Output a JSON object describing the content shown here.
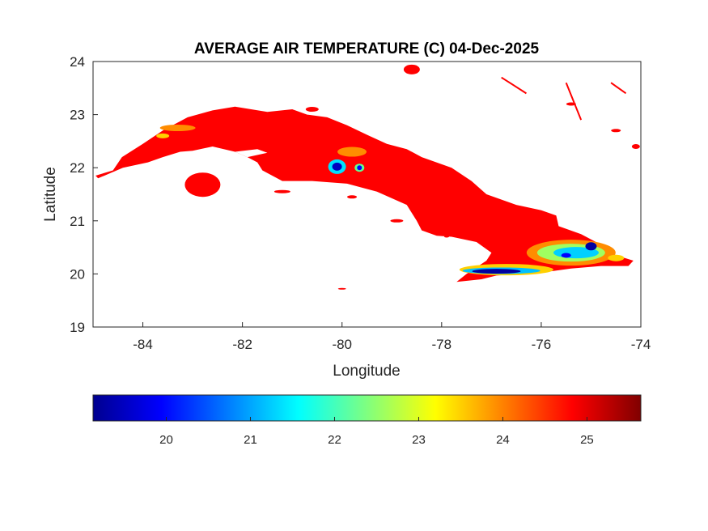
{
  "chart_data": {
    "type": "heatmap",
    "title": "AVERAGE AIR TEMPERATURE (C) 04-Dec-2025",
    "xlabel": "Longitude",
    "ylabel": "Latitude",
    "xlim": [
      -85,
      -74
    ],
    "ylim": [
      19,
      24
    ],
    "xticks": [
      -84,
      -82,
      -80,
      -78,
      -76,
      -74
    ],
    "yticks": [
      19,
      20,
      21,
      22,
      23,
      24
    ],
    "colormap": "jet",
    "colorbar": {
      "location": "bottom",
      "clim": [
        19.13,
        25.64
      ],
      "ticks": [
        20,
        21,
        22,
        23,
        24,
        25
      ]
    },
    "regions": [
      {
        "name": "",
        "value_range": [
          24.8,
          25.6
        ]
      }
    ]
  },
  "colors": {
    "land_typical": "#ff0000",
    "background": "#ffffff",
    "axes": "#262626"
  }
}
